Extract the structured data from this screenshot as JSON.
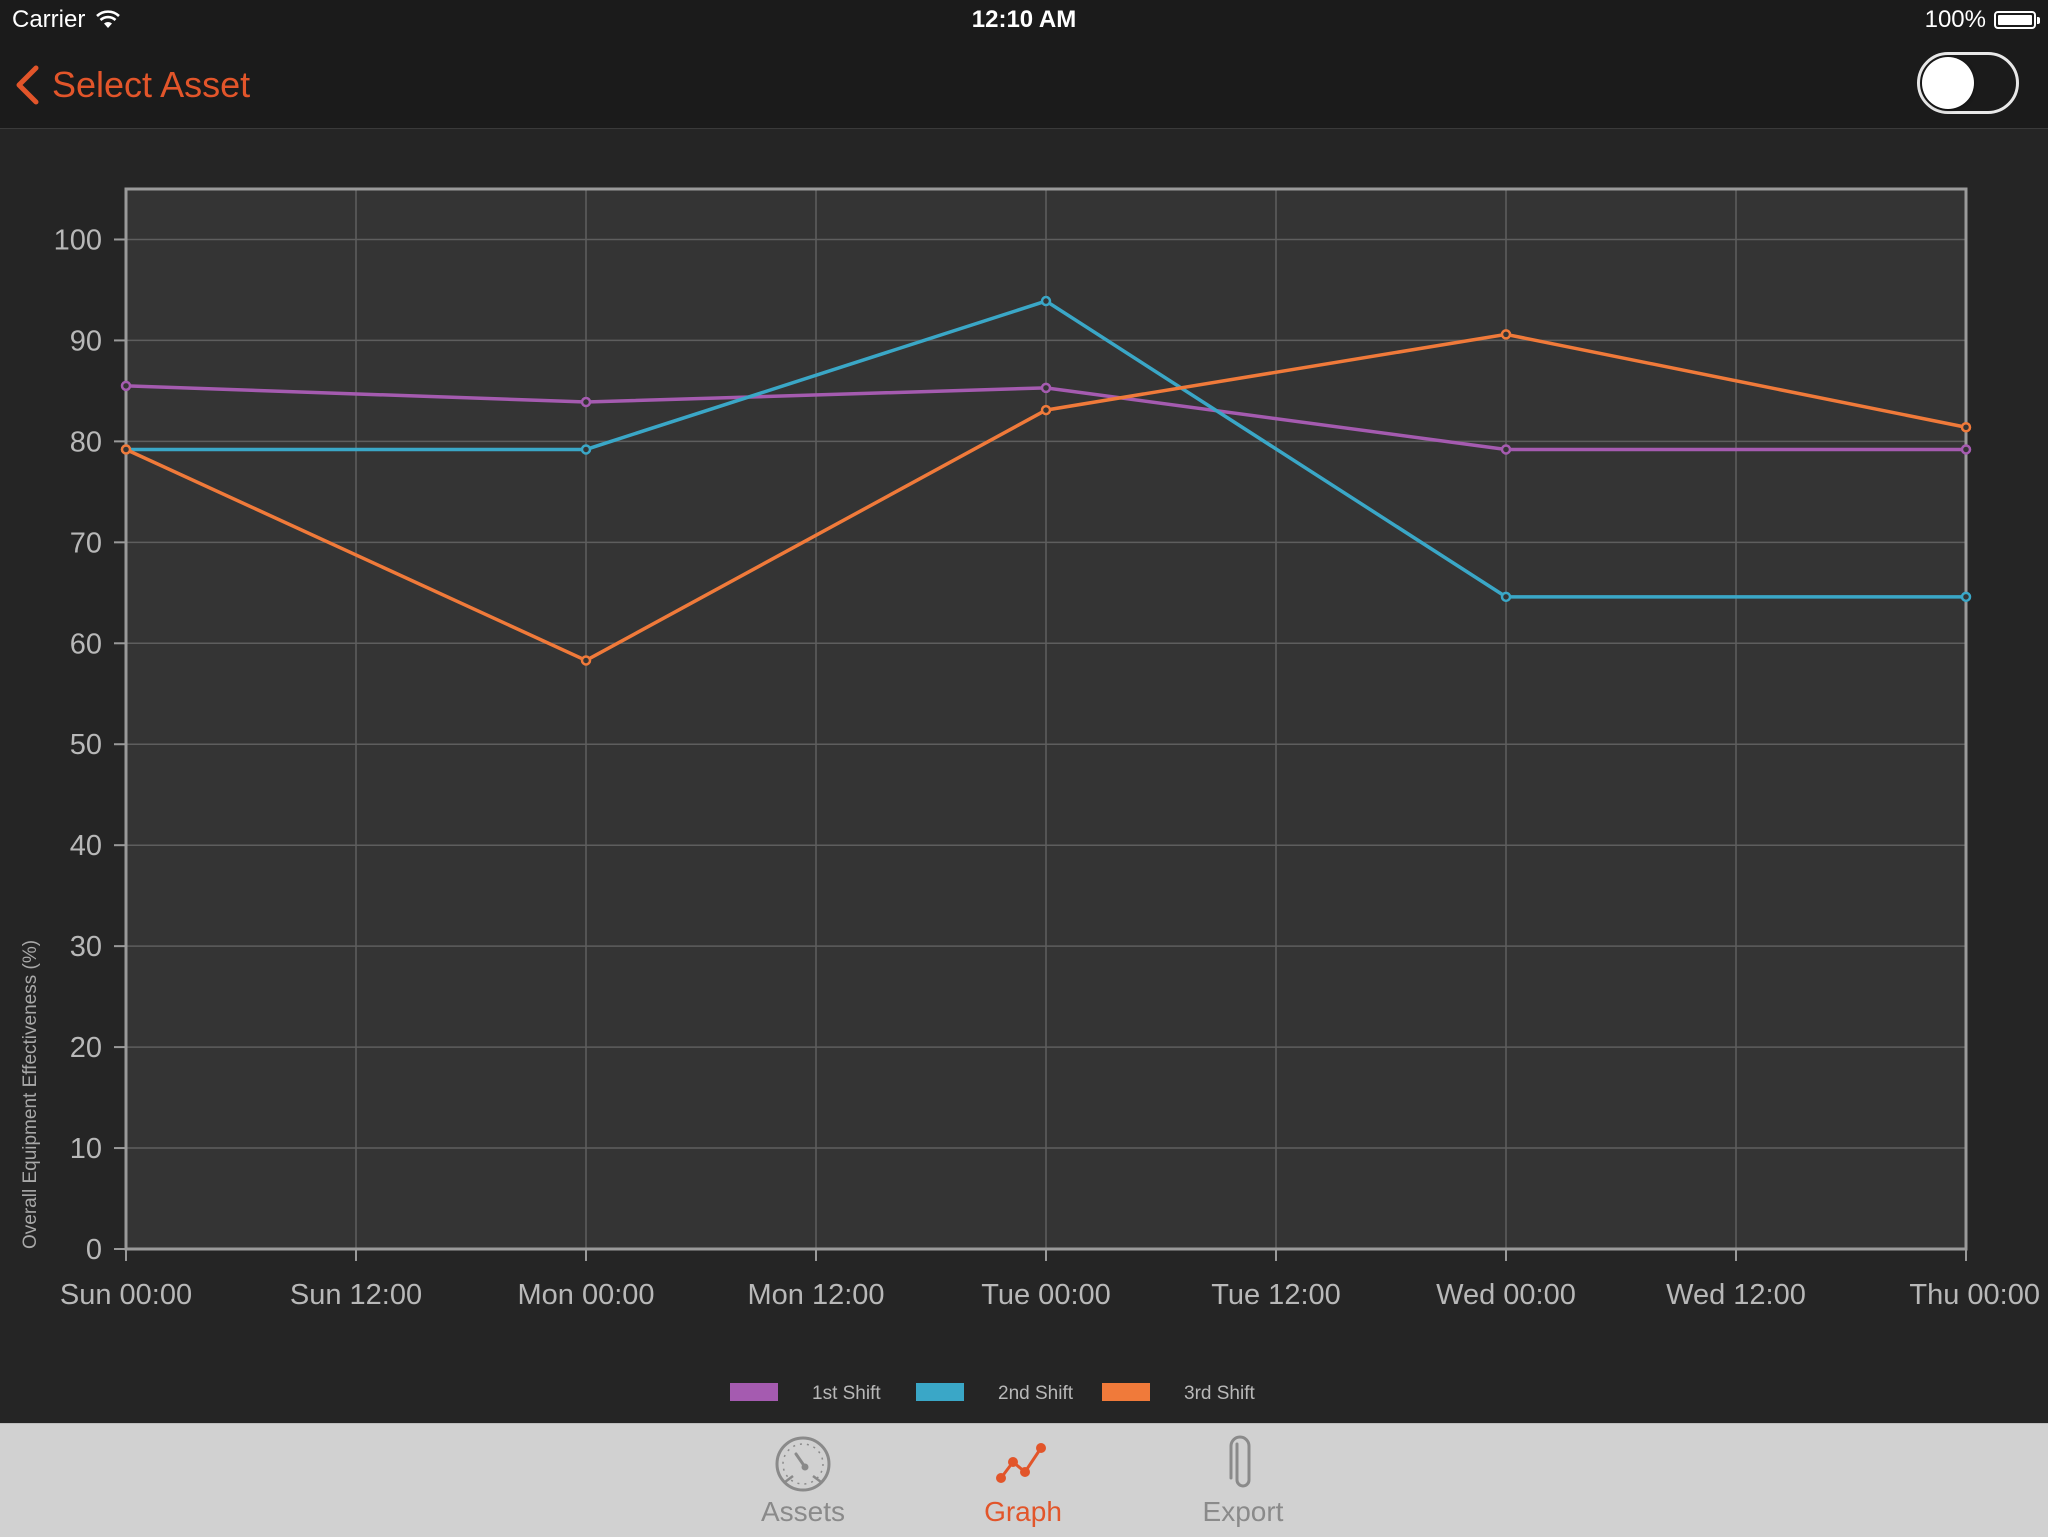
{
  "status_bar": {
    "carrier": "Carrier",
    "time": "12:10 AM",
    "battery": "100%"
  },
  "nav": {
    "back_label": "Select Asset",
    "toggle_on": false
  },
  "colors": {
    "accent": "#e2552a",
    "series1": "#a55bb0",
    "series2": "#3aa7c7",
    "series3": "#f07a3a"
  },
  "tabs": [
    {
      "label": "Assets",
      "icon": "gauge-icon",
      "active": false
    },
    {
      "label": "Graph",
      "icon": "graph-icon",
      "active": true
    },
    {
      "label": "Export",
      "icon": "paperclip-icon",
      "active": false
    }
  ],
  "chart_data": {
    "type": "line",
    "title": "",
    "xlabel": "",
    "ylabel": "Overall Equipment Effectiveness (%)",
    "ylim": [
      0,
      105
    ],
    "yticks": [
      0,
      10,
      20,
      30,
      40,
      50,
      60,
      70,
      80,
      90,
      100
    ],
    "xticks": [
      "Sun 00:00",
      "Sun 12:00",
      "Mon 00:00",
      "Mon 12:00",
      "Tue 00:00",
      "Tue 12:00",
      "Wed 00:00",
      "Wed 12:00",
      "Thu 00:00"
    ],
    "x_unit": "hours from Sun 00:00",
    "xlim": [
      0,
      96
    ],
    "grid": true,
    "legend_position": "bottom-center",
    "series": [
      {
        "name": "1st Shift",
        "points": [
          [
            0,
            85.5
          ],
          [
            24,
            83.9
          ],
          [
            48,
            85.3
          ],
          [
            72,
            79.2
          ],
          [
            96,
            79.2
          ]
        ]
      },
      {
        "name": "2nd Shift",
        "points": [
          [
            0,
            79.2
          ],
          [
            24,
            79.2
          ],
          [
            48,
            93.9
          ],
          [
            72,
            64.6
          ],
          [
            96,
            64.6
          ]
        ]
      },
      {
        "name": "3rd Shift",
        "points": [
          [
            0,
            79.2
          ],
          [
            24,
            58.3
          ],
          [
            48,
            83.1
          ],
          [
            72,
            90.6
          ],
          [
            96,
            81.4
          ]
        ]
      }
    ]
  }
}
